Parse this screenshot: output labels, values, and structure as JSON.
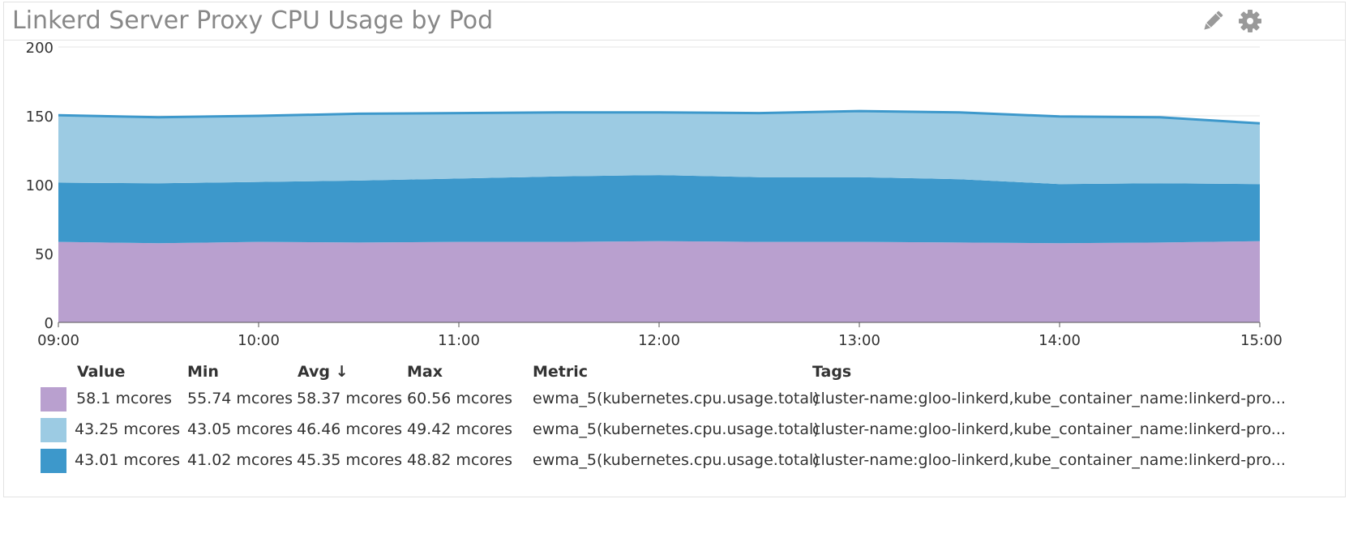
{
  "widget": {
    "title": "Linkerd Server Proxy CPU Usage by Pod",
    "edit_icon": "pencil-icon",
    "settings_icon": "gear-icon"
  },
  "chart_data": {
    "type": "area",
    "stacked": true,
    "title": "Linkerd Server Proxy CPU Usage by Pod",
    "xlabel": "",
    "ylabel": "",
    "ylim": [
      0,
      200
    ],
    "yticks": [
      "0",
      "50",
      "100",
      "150",
      "200"
    ],
    "xticks": [
      "09:00",
      "10:00",
      "11:00",
      "12:00",
      "13:00",
      "14:00",
      "15:00"
    ],
    "grid": true,
    "x": [
      "09:00",
      "09:30",
      "10:00",
      "10:30",
      "11:00",
      "11:30",
      "12:00",
      "12:30",
      "13:00",
      "13:30",
      "14:00",
      "14:30",
      "15:00"
    ],
    "series": [
      {
        "color": "#b9a0cf",
        "values": [
          58.5,
          57.5,
          58.5,
          58.0,
          58.5,
          58.5,
          59.0,
          58.5,
          58.5,
          58.0,
          57.5,
          58.0,
          59.0
        ]
      },
      {
        "color": "#3d98cb",
        "values": [
          43.0,
          43.5,
          43.5,
          45.0,
          46.0,
          47.5,
          48.0,
          47.0,
          47.0,
          46.0,
          43.0,
          43.0,
          41.5
        ]
      },
      {
        "color": "#9ccbe3",
        "values": [
          49.0,
          48.0,
          48.0,
          48.5,
          47.5,
          46.5,
          45.5,
          46.5,
          48.0,
          48.5,
          49.0,
          48.0,
          44.0
        ]
      }
    ],
    "colors": {
      "top_line": "#3d98cb",
      "grid": "#e6e6e6",
      "axis": "#555555"
    }
  },
  "legend": {
    "headers": {
      "value": "Value",
      "min": "Min",
      "avg": "Avg ↓",
      "max": "Max",
      "metric": "Metric",
      "tags": "Tags"
    },
    "rows": [
      {
        "color": "#b9a0cf",
        "value": "58.1 mcores",
        "min": "55.74 mcores",
        "avg": "58.37 mcores",
        "max": "60.56 mcores",
        "metric": "ewma_5(kubernetes.cpu.usage.total)",
        "tags": "cluster-name:gloo-linkerd,kube_container_name:linkerd-pro..."
      },
      {
        "color": "#9ccbe3",
        "value": "43.25 mcores",
        "min": "43.05 mcores",
        "avg": "46.46 mcores",
        "max": "49.42 mcores",
        "metric": "ewma_5(kubernetes.cpu.usage.total)",
        "tags": "cluster-name:gloo-linkerd,kube_container_name:linkerd-pro..."
      },
      {
        "color": "#3d98cb",
        "value": "43.01 mcores",
        "min": "41.02 mcores",
        "avg": "45.35 mcores",
        "max": "48.82 mcores",
        "metric": "ewma_5(kubernetes.cpu.usage.total)",
        "tags": "cluster-name:gloo-linkerd,kube_container_name:linkerd-pro..."
      }
    ]
  }
}
